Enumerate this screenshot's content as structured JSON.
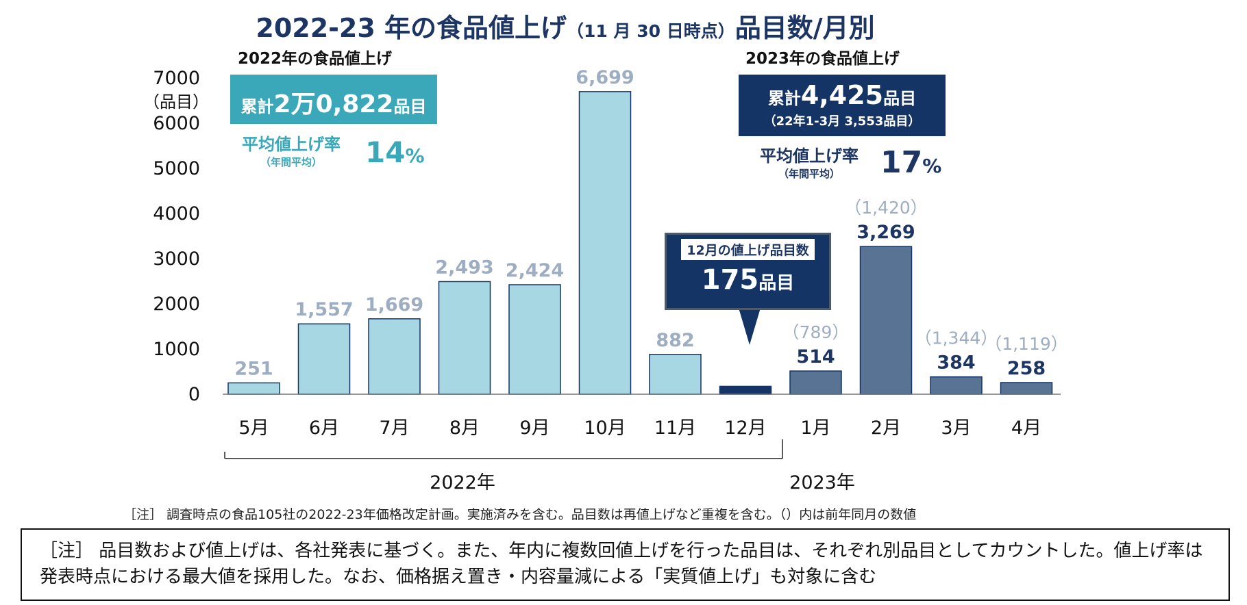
{
  "title": {
    "main": "2022-23 年の食品値上げ",
    "sub": "（11 月 30 日時点）",
    "tail": "品目数/月別"
  },
  "sections": {
    "y2022_label": "2022年の食品値上げ",
    "y2023_label": "2023年の食品値上げ"
  },
  "summary_2022": {
    "total_prefix": "累計",
    "total_value": "2万0,822",
    "total_unit": "品目",
    "avg_label": "平均値上げ率",
    "avg_sub": "（年間平均）",
    "avg_value": "14",
    "avg_unit": "%"
  },
  "summary_2023": {
    "total_prefix": "累計",
    "total_value": "4,425",
    "total_unit": "品目",
    "total_note": "（22年1-3月 3,553品目）",
    "avg_label": "平均値上げ率",
    "avg_sub": "（年間平均）",
    "avg_value": "17",
    "avg_unit": "%"
  },
  "callout_dec": {
    "label": "12月の値上げ品目数",
    "value": "175",
    "unit": "品目"
  },
  "colors": {
    "bar_2022": "#a6d7e3",
    "bar_dec": "#143466",
    "bar_2023": "#587394",
    "label_2022": "#9eaec2",
    "label_2023": "#1c3563",
    "box_2022": "#3aa8b8",
    "box_2023": "#143466",
    "text_2022": "#3aa8b8",
    "text_2023": "#1c3563"
  },
  "chart_data": {
    "type": "bar",
    "categories": [
      "5月",
      "6月",
      "7月",
      "8月",
      "9月",
      "10月",
      "11月",
      "12月",
      "1月",
      "2月",
      "3月",
      "4月"
    ],
    "values": [
      251,
      1557,
      1669,
      2493,
      2424,
      6699,
      882,
      175,
      514,
      3269,
      384,
      258
    ],
    "data_labels": [
      "251",
      "1,557",
      "1,669",
      "2,493",
      "2,424",
      "6,699",
      "882",
      "",
      "514",
      "3,269",
      "384",
      "258"
    ],
    "prev_year_labels": [
      "",
      "",
      "",
      "",
      "",
      "",
      "",
      "",
      "（789）",
      "（1,420）",
      "（1,344）",
      "（1,119）"
    ],
    "groups": [
      "2022",
      "2022",
      "2022",
      "2022",
      "2022",
      "2022",
      "2022",
      "dec",
      "2023",
      "2023",
      "2023",
      "2023"
    ],
    "year_labels": [
      "2022年",
      "2023年"
    ],
    "yticks": [
      "0",
      "1000",
      "2000",
      "3000",
      "4000",
      "5000",
      "6000",
      "7000"
    ],
    "ylabel": "（品目）",
    "ylim": [
      0,
      7000
    ],
    "grid": false
  },
  "notes": {
    "note1": "［注］ 調査時点の食品105社の2022-23年価格改定計画。実施済みを含む。品目数は再値上げなど重複を含む。（）内は前年同月の数値",
    "note2": "［注］ 品目数および値上げは、各社発表に基づく。また、年内に複数回値上げを行った品目は、それぞれ別品目としてカウントした。値上げ率は発表時点における最大値を採用した。なお、価格据え置き・内容量減による「実質値上げ」も対象に含む"
  }
}
